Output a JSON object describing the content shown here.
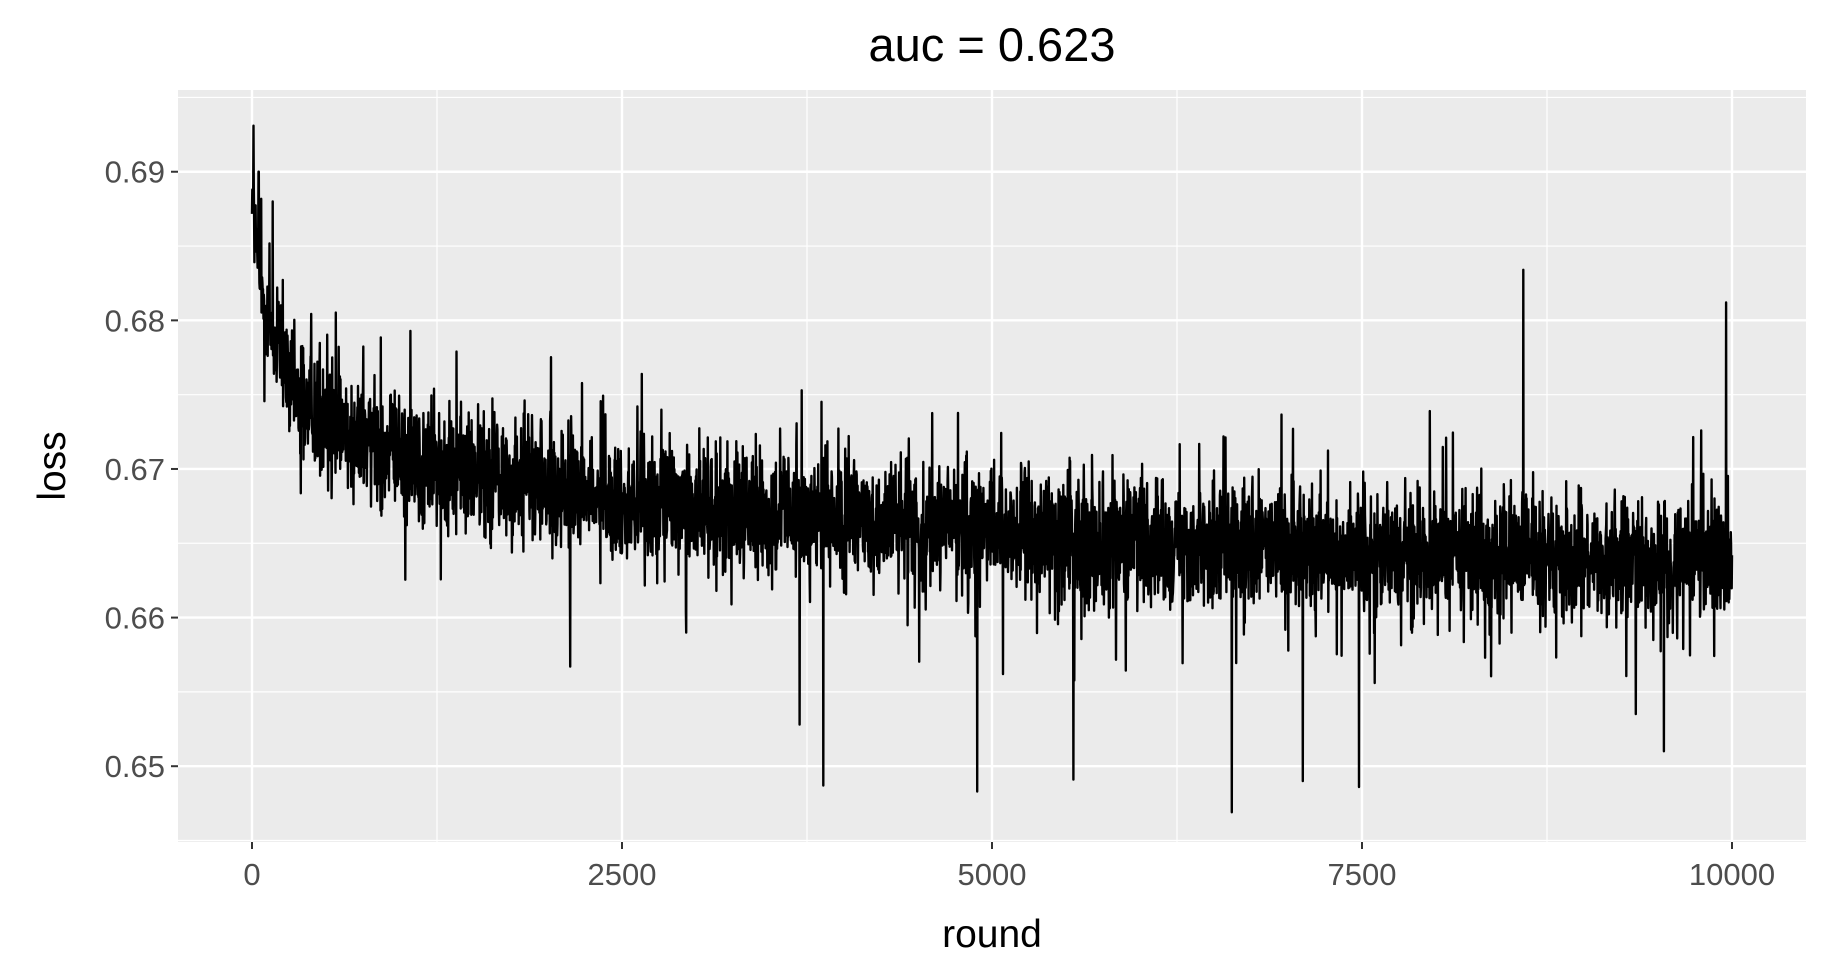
{
  "chart_data": {
    "type": "line",
    "title": "auc = 0.623",
    "xlabel": "round",
    "ylabel": "loss",
    "xlim": [
      -500,
      10500
    ],
    "ylim": [
      0.6449,
      0.6955
    ],
    "xticks": [
      0,
      2500,
      5000,
      7500,
      10000
    ],
    "xtick_labels": [
      "0",
      "2500",
      "5000",
      "7500",
      "10000"
    ],
    "yticks": [
      0.65,
      0.66,
      0.67,
      0.68,
      0.69
    ],
    "ytick_labels": [
      "0.65",
      "0.66",
      "0.67",
      "0.68",
      "0.69"
    ],
    "grid": true,
    "legend": "none",
    "panel_background": "#ebebeb",
    "line_color": "#000000",
    "series_trend": {
      "x": [
        0,
        50,
        100,
        200,
        300,
        500,
        750,
        1000,
        1500,
        2000,
        2500,
        3000,
        3500,
        4000,
        4500,
        5000,
        5500,
        6000,
        6500,
        7000,
        7500,
        8000,
        8500,
        9000,
        9500,
        10000
      ],
      "y": [
        0.689,
        0.683,
        0.68,
        0.677,
        0.675,
        0.6735,
        0.672,
        0.671,
        0.6698,
        0.6688,
        0.668,
        0.6675,
        0.667,
        0.6666,
        0.6662,
        0.6658,
        0.6655,
        0.6652,
        0.665,
        0.6647,
        0.6645,
        0.6643,
        0.6641,
        0.664,
        0.6638,
        0.6637
      ],
      "band_halfwidth": [
        0.003,
        0.0045,
        0.005,
        0.0055,
        0.0058,
        0.006,
        0.006,
        0.006,
        0.006,
        0.006,
        0.006,
        0.006,
        0.006,
        0.006,
        0.006,
        0.006,
        0.006,
        0.006,
        0.006,
        0.006,
        0.006,
        0.006,
        0.006,
        0.006,
        0.006,
        0.006
      ]
    },
    "notable_points": [
      {
        "x": 10,
        "y": 0.6931
      },
      {
        "x": 45,
        "y": 0.69
      },
      {
        "x": 140,
        "y": 0.688
      },
      {
        "x": 2150,
        "y": 0.6567
      },
      {
        "x": 3700,
        "y": 0.6528
      },
      {
        "x": 3860,
        "y": 0.6487
      },
      {
        "x": 4900,
        "y": 0.6483
      },
      {
        "x": 5550,
        "y": 0.6491
      },
      {
        "x": 6620,
        "y": 0.6469
      },
      {
        "x": 7100,
        "y": 0.649
      },
      {
        "x": 7480,
        "y": 0.6486
      },
      {
        "x": 8590,
        "y": 0.6834
      },
      {
        "x": 9540,
        "y": 0.651
      },
      {
        "x": 9960,
        "y": 0.6812
      }
    ]
  }
}
